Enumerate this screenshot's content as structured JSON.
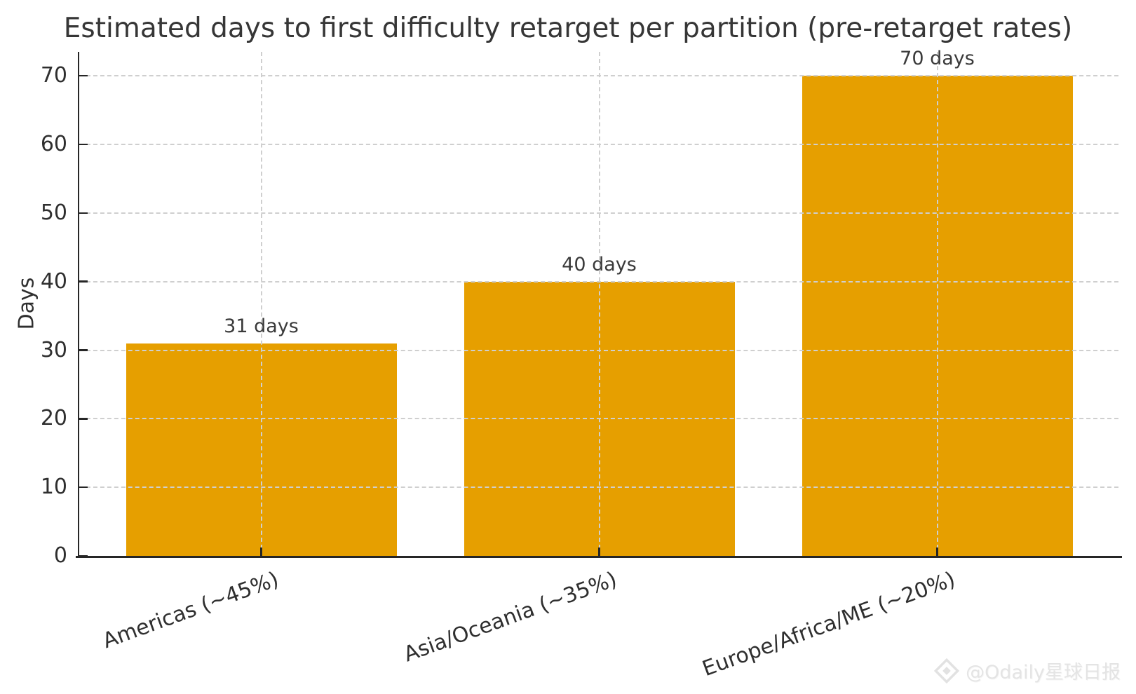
{
  "chart_data": {
    "type": "bar",
    "title": "Estimated days to first difficulty retarget per partition (pre-retarget rates)",
    "ylabel": "Days",
    "xlabel": "",
    "categories": [
      "Americas (~45%)",
      "Asia/Oceania (~35%)",
      "Europe/Africa/ME (~20%)"
    ],
    "values": [
      31,
      40,
      70
    ],
    "bar_value_labels": [
      "31 days",
      "40 days",
      "70 days"
    ],
    "yticks": [
      0,
      10,
      20,
      30,
      40,
      50,
      60,
      70
    ],
    "ylim": [
      0,
      73.5
    ],
    "grid": "dashed gray, horizontal at each ytick and vertical at each bar center",
    "legend": "none",
    "bar_color": "#E69F00",
    "x_tick_label_rotation_deg": 20
  },
  "watermark": {
    "icon": "odaily-diamond-logo",
    "text": "@Odaily星球日报"
  }
}
